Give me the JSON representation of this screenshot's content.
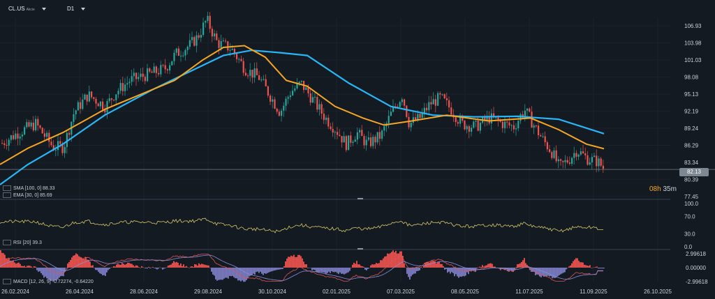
{
  "header": {
    "symbol": "CL.US",
    "symbol_sub": "Akcie",
    "interval": "D1"
  },
  "indicators": {
    "sma_label": "SMA [100, 0] 88.33",
    "ema_label": "EMA [30, 0] 85.69",
    "rsi_label": "RSI [20] 39.3",
    "macd_label": "MACD [12, 26, 9] -0.72274, -0.64220"
  },
  "timer": {
    "hours": "08h",
    "minutes": "35m"
  },
  "current_price": "82.13",
  "colors": {
    "background": "#131a22",
    "up": "#26a69a",
    "down": "#ef5350",
    "sma": "#29b6f6",
    "ema": "#f5a623",
    "rsi": "#d8c96a",
    "macd_hist_pos": "#ef5350",
    "macd_hist_neg": "#7e7fc7"
  },
  "chart_data": [
    {
      "type": "line",
      "x_tick_labels": [
        "26.02.2024",
        "26.04.2024",
        "28.06.2024",
        "29.08.2024",
        "30.10.2024",
        "02.01.2025",
        "07.03.2025",
        "08.05.2025",
        "11.07.2025",
        "11.09.2025",
        "26.10.2025"
      ],
      "y_tick_labels": [
        "106.93",
        "103.98",
        "101.03",
        "98.08",
        "95.13",
        "92.19",
        "89.24",
        "86.29",
        "83.34",
        "80.39",
        "77.45"
      ],
      "ylim": [
        77.45,
        108.5
      ],
      "sma_path": [
        [
          0,
          79.5
        ],
        [
          40,
          83.0
        ],
        [
          90,
          86.5
        ],
        [
          150,
          91.5
        ],
        [
          220,
          96.0
        ],
        [
          280,
          99.5
        ],
        [
          320,
          101.8
        ],
        [
          360,
          102.7
        ],
        [
          400,
          102.3
        ],
        [
          440,
          101.8
        ],
        [
          500,
          97.0
        ],
        [
          560,
          93.0
        ],
        [
          620,
          91.5
        ],
        [
          680,
          91.2
        ],
        [
          740,
          91.3
        ],
        [
          800,
          90.8
        ],
        [
          865,
          88.3
        ]
      ],
      "ema_path": [
        [
          0,
          83.0
        ],
        [
          40,
          85.8
        ],
        [
          90,
          88.5
        ],
        [
          150,
          92.5
        ],
        [
          200,
          95.0
        ],
        [
          250,
          97.5
        ],
        [
          290,
          101.0
        ],
        [
          320,
          103.2
        ],
        [
          350,
          103.5
        ],
        [
          380,
          101.5
        ],
        [
          410,
          97.5
        ],
        [
          440,
          96.5
        ],
        [
          480,
          93.0
        ],
        [
          520,
          91.0
        ],
        [
          550,
          89.8
        ],
        [
          590,
          90.5
        ],
        [
          640,
          91.5
        ],
        [
          700,
          90.5
        ],
        [
          760,
          91.0
        ],
        [
          800,
          89.0
        ],
        [
          840,
          86.5
        ],
        [
          865,
          85.7
        ]
      ],
      "price_path": [
        [
          0,
          86.5
        ],
        [
          25,
          88.5
        ],
        [
          50,
          90.0
        ],
        [
          75,
          86.0
        ],
        [
          90,
          86.0
        ],
        [
          105,
          92.0
        ],
        [
          125,
          95.0
        ],
        [
          150,
          93.0
        ],
        [
          165,
          95.5
        ],
        [
          185,
          97.5
        ],
        [
          210,
          98.5
        ],
        [
          235,
          99.5
        ],
        [
          250,
          102.0
        ],
        [
          270,
          103.5
        ],
        [
          282,
          105.0
        ],
        [
          295,
          108.0
        ],
        [
          310,
          104.0
        ],
        [
          330,
          103.0
        ],
        [
          350,
          99.5
        ],
        [
          370,
          98.0
        ],
        [
          385,
          95.0
        ],
        [
          400,
          92.0
        ],
        [
          415,
          95.5
        ],
        [
          430,
          97.0
        ],
        [
          445,
          94.5
        ],
        [
          465,
          91.0
        ],
        [
          480,
          89.0
        ],
        [
          495,
          86.5
        ],
        [
          510,
          88.5
        ],
        [
          525,
          86.5
        ],
        [
          545,
          88.0
        ],
        [
          560,
          92.0
        ],
        [
          575,
          95.0
        ],
        [
          585,
          90.0
        ],
        [
          600,
          91.0
        ],
        [
          615,
          93.5
        ],
        [
          630,
          94.5
        ],
        [
          645,
          92.5
        ],
        [
          660,
          90.0
        ],
        [
          680,
          89.5
        ],
        [
          700,
          91.0
        ],
        [
          720,
          90.0
        ],
        [
          735,
          89.5
        ],
        [
          750,
          92.5
        ],
        [
          760,
          90.5
        ],
        [
          775,
          87.5
        ],
        [
          790,
          85.0
        ],
        [
          800,
          82.5
        ],
        [
          815,
          84.0
        ],
        [
          825,
          85.5
        ],
        [
          840,
          84.0
        ],
        [
          855,
          83.5
        ],
        [
          865,
          82.1
        ]
      ],
      "current_value": 82.13
    },
    {
      "type": "line",
      "name": "RSI [20]",
      "y_tick_labels": [
        "100.0",
        "70.0",
        "30.0",
        "0.0"
      ],
      "ylim": [
        0,
        100
      ],
      "value": 39.3
    },
    {
      "type": "bar",
      "name": "MACD [12, 26, 9]",
      "y_tick_labels": [
        "2.99618",
        "0.00000",
        "-2.99618"
      ],
      "ylim": [
        -2.99618,
        2.99618
      ],
      "values": [
        -0.72274,
        -0.6422
      ]
    }
  ]
}
